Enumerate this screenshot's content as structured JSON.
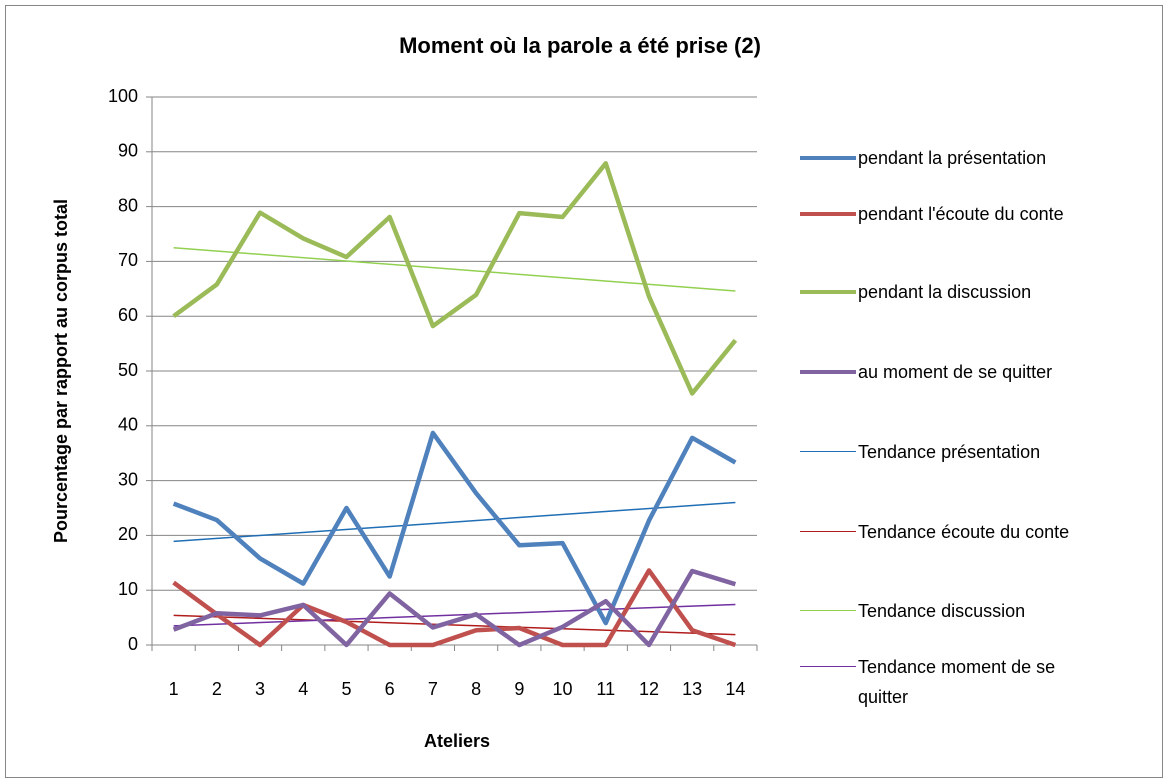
{
  "chart_data": {
    "type": "line",
    "title": "Moment où la parole a été prise (2)",
    "x_label": "Ateliers",
    "y_label": "Pourcentage par rapport au corpus total",
    "categories": [
      "1",
      "2",
      "3",
      "4",
      "5",
      "6",
      "7",
      "8",
      "9",
      "10",
      "11",
      "12",
      "13",
      "14"
    ],
    "series": [
      {
        "name": "pendant la présentation",
        "color": "#4f81bd",
        "values": [
          25.8,
          22.8,
          15.8,
          11.2,
          25,
          12.5,
          38.7,
          27.7,
          18.2,
          18.6,
          4,
          22.7,
          37.8,
          33.3
        ]
      },
      {
        "name": "pendant l'écoute du conte",
        "color": "#c0504d",
        "values": [
          11.4,
          5.6,
          0,
          7.3,
          4.2,
          0,
          0,
          2.7,
          3.1,
          0,
          0,
          13.6,
          2.7,
          0
        ]
      },
      {
        "name": "pendant la discussion",
        "color": "#9bbb59",
        "values": [
          60,
          65.8,
          78.9,
          74.2,
          70.8,
          78.1,
          58.2,
          63.9,
          78.8,
          78.1,
          87.9,
          63.6,
          45.9,
          55.6
        ]
      },
      {
        "name": "au moment de se quitter",
        "color": "#8064a2",
        "values": [
          2.8,
          5.8,
          5.4,
          7.3,
          0,
          9.4,
          3.2,
          5.6,
          0,
          3.3,
          8,
          0,
          13.5,
          11.1
        ]
      }
    ],
    "trendlines": [
      {
        "name": "Tendance présentation",
        "color": "#1f6eb5",
        "values": [
          18.9,
          26
        ]
      },
      {
        "name": "Tendance écoute du conte",
        "color": "#b01c1c",
        "values": [
          5.4,
          1.9
        ]
      },
      {
        "name": "Tendance discussion",
        "color": "#92d050",
        "values": [
          72.5,
          64.6
        ]
      },
      {
        "name": "Tendance moment de se quitter",
        "color": "#7030a0",
        "values": [
          3.5,
          7.4
        ]
      }
    ],
    "ylim": [
      0,
      100
    ],
    "yticks": [
      0,
      10,
      20,
      30,
      40,
      50,
      60,
      70,
      80,
      90,
      100
    ],
    "grid": true
  }
}
